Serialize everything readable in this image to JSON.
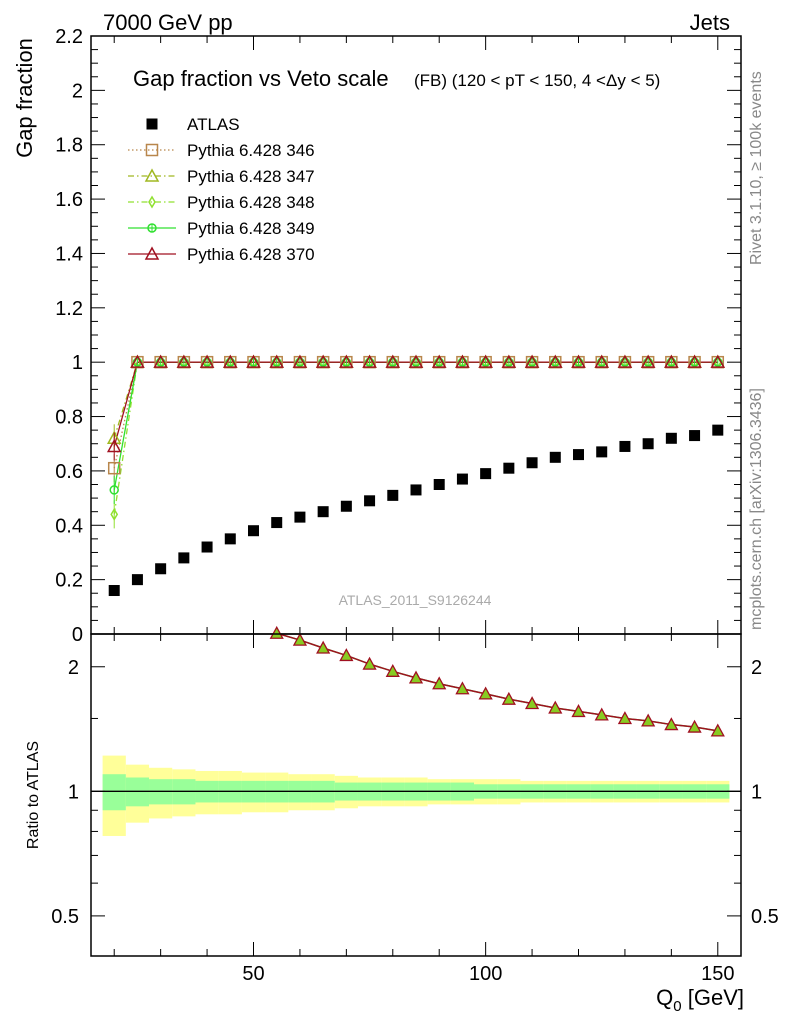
{
  "header": {
    "left": "7000 GeV pp",
    "right": "Jets",
    "plot_title": "Gap fraction vs Veto scale",
    "plot_subtitle": "(FB) (120 < pT < 150, 4 <Δy < 5)",
    "analysis_label": "ATLAS_2011_S9126244",
    "side_rivet": "Rivet 3.1.10, ≥ 100k events",
    "side_mcplots": "mcplots.cern.ch [arXiv:1306.3436]"
  },
  "colors": {
    "ATLAS": "#000000",
    "Pythia 6.428 346": "#b8864b",
    "Pythia 6.428 347": "#a0b820",
    "Pythia 6.428 348": "#90e030",
    "Pythia 6.428 349": "#30e030",
    "Pythia 6.428 370": "#a01020",
    "band_inner": "#99ff99",
    "band_outer": "#ffff99"
  },
  "chart_data": [
    {
      "type": "scatter",
      "ylabel": "Gap fraction",
      "xlim": [
        15,
        155
      ],
      "ylim": [
        0,
        2.2
      ],
      "yticks": [
        "0",
        "0.2",
        "0.4",
        "0.6",
        "0.8",
        "1",
        "1.2",
        "1.4",
        "1.6",
        "1.8",
        "2",
        "2.2"
      ],
      "x": [
        20,
        25,
        30,
        35,
        40,
        45,
        50,
        55,
        60,
        65,
        70,
        75,
        80,
        85,
        90,
        95,
        100,
        105,
        110,
        115,
        120,
        125,
        130,
        135,
        140,
        145,
        150
      ],
      "series": [
        {
          "name": "ATLAS",
          "marker": "square",
          "values": [
            0.16,
            0.2,
            0.24,
            0.28,
            0.32,
            0.35,
            0.38,
            0.41,
            0.43,
            0.45,
            0.47,
            0.49,
            0.51,
            0.53,
            0.55,
            0.57,
            0.59,
            0.61,
            0.63,
            0.65,
            0.66,
            0.67,
            0.69,
            0.7,
            0.72,
            0.73,
            0.75
          ]
        },
        {
          "name": "Pythia 6.428 346",
          "marker": "open-square",
          "line": "dotted",
          "values": [
            0.61,
            1,
            1,
            1,
            1,
            1,
            1,
            1,
            1,
            1,
            1,
            1,
            1,
            1,
            1,
            1,
            1,
            1,
            1,
            1,
            1,
            1,
            1,
            1,
            1,
            1,
            1
          ]
        },
        {
          "name": "Pythia 6.428 347",
          "marker": "open-triangle",
          "line": "dashdot",
          "values": [
            0.72,
            1,
            1,
            1,
            1,
            1,
            1,
            1,
            1,
            1,
            1,
            1,
            1,
            1,
            1,
            1,
            1,
            1,
            1,
            1,
            1,
            1,
            1,
            1,
            1,
            1,
            1
          ]
        },
        {
          "name": "Pythia 6.428 348",
          "marker": "open-diamond",
          "line": "dashdot",
          "values": [
            0.44,
            1,
            1,
            1,
            1,
            1,
            1,
            1,
            1,
            1,
            1,
            1,
            1,
            1,
            1,
            1,
            1,
            1,
            1,
            1,
            1,
            1,
            1,
            1,
            1,
            1,
            1
          ]
        },
        {
          "name": "Pythia 6.428 349",
          "marker": "open-circle-cross",
          "line": "solid",
          "values": [
            0.53,
            1,
            1,
            1,
            1,
            1,
            1,
            1,
            1,
            1,
            1,
            1,
            1,
            1,
            1,
            1,
            1,
            1,
            1,
            1,
            1,
            1,
            1,
            1,
            1,
            1,
            1
          ]
        },
        {
          "name": "Pythia 6.428 370",
          "marker": "open-triangle",
          "line": "solid",
          "values": [
            0.69,
            1,
            1,
            1,
            1,
            1,
            1,
            1,
            1,
            1,
            1,
            1,
            1,
            1,
            1,
            1,
            1,
            1,
            1,
            1,
            1,
            1,
            1,
            1,
            1,
            1,
            1
          ]
        }
      ],
      "legend": "top-left"
    },
    {
      "type": "line",
      "ylabel": "Ratio to ATLAS",
      "xlabel": "Q0 [GeV]",
      "xlim": [
        15,
        155
      ],
      "ylim": [
        0.4,
        2.4
      ],
      "yscale": "log",
      "yticks": [
        "0.5",
        "1",
        "2"
      ],
      "xticks": [
        "50",
        "100",
        "150"
      ],
      "x": [
        55,
        60,
        65,
        70,
        75,
        80,
        85,
        90,
        95,
        100,
        105,
        110,
        115,
        120,
        125,
        130,
        135,
        140,
        145,
        150
      ],
      "ratio_values": [
        2.41,
        2.32,
        2.22,
        2.13,
        2.03,
        1.95,
        1.88,
        1.82,
        1.77,
        1.72,
        1.67,
        1.63,
        1.59,
        1.56,
        1.53,
        1.5,
        1.48,
        1.45,
        1.43,
        1.4
      ],
      "band_x": [
        20,
        25,
        30,
        35,
        40,
        45,
        50,
        55,
        60,
        65,
        70,
        75,
        80,
        85,
        90,
        95,
        100,
        105,
        110,
        115,
        120,
        125,
        130,
        135,
        140,
        145,
        150
      ],
      "band_inner": [
        0.1,
        0.08,
        0.07,
        0.07,
        0.06,
        0.06,
        0.06,
        0.06,
        0.06,
        0.06,
        0.05,
        0.05,
        0.05,
        0.05,
        0.05,
        0.05,
        0.04,
        0.04,
        0.04,
        0.04,
        0.04,
        0.04,
        0.04,
        0.04,
        0.04,
        0.04,
        0.04
      ],
      "band_outer": [
        0.22,
        0.16,
        0.14,
        0.13,
        0.12,
        0.12,
        0.11,
        0.11,
        0.1,
        0.1,
        0.09,
        0.08,
        0.08,
        0.08,
        0.07,
        0.07,
        0.07,
        0.07,
        0.06,
        0.06,
        0.06,
        0.06,
        0.06,
        0.06,
        0.06,
        0.06,
        0.06
      ]
    }
  ]
}
